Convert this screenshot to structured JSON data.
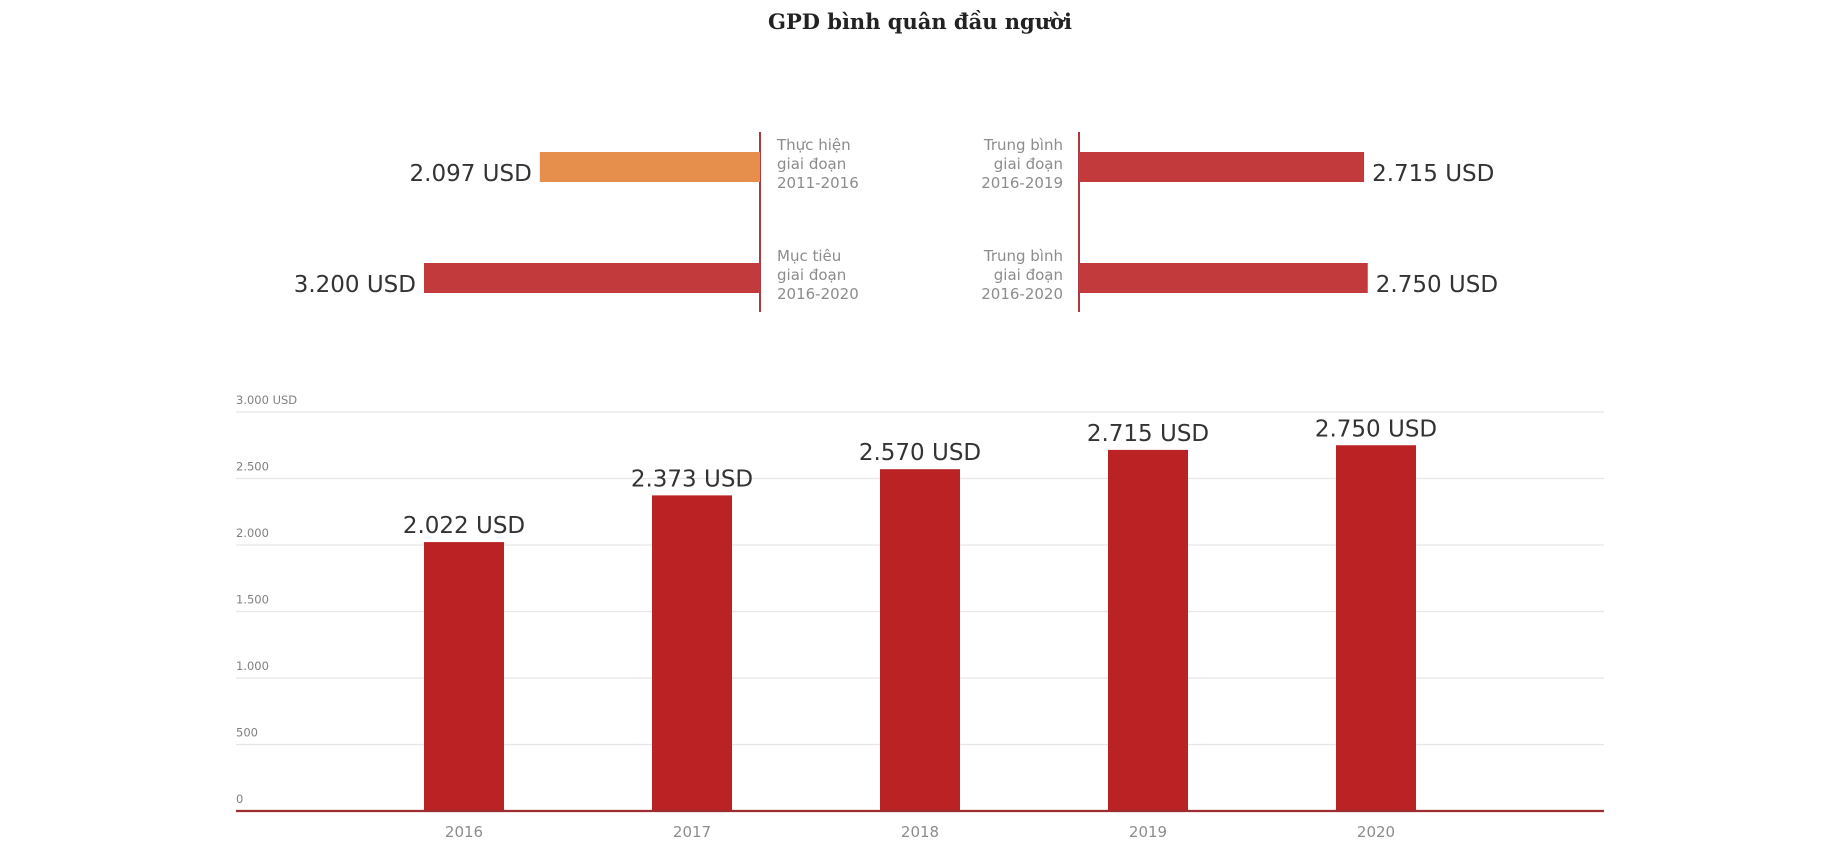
{
  "chart_data": [
    {
      "type": "bar",
      "orientation": "horizontal",
      "title": "GPD bình quân đầu người",
      "panel": "left",
      "unit": "USD",
      "items": [
        {
          "label_lines": [
            "Thực hiện",
            "giai đoạn",
            "2011-2016"
          ],
          "value": 2097,
          "value_label": "2.097 USD",
          "color": "#E68E4C"
        },
        {
          "label_lines": [
            "Mục tiêu",
            "giai đoạn",
            "2016-2020"
          ],
          "value": 3200,
          "value_label": "3.200 USD",
          "color": "#C23A3C"
        }
      ]
    },
    {
      "type": "bar",
      "orientation": "horizontal",
      "panel": "right",
      "unit": "USD",
      "items": [
        {
          "label_lines": [
            "Trung bình",
            "giai đoạn",
            "2016-2019"
          ],
          "value": 2715,
          "value_label": "2.715 USD",
          "color": "#C23A3C"
        },
        {
          "label_lines": [
            "Trung bình",
            "giai đoạn",
            "2016-2020"
          ],
          "value": 2750,
          "value_label": "2.750 USD",
          "color": "#C23A3C"
        }
      ]
    },
    {
      "type": "bar",
      "orientation": "vertical",
      "categories": [
        "2016",
        "2017",
        "2018",
        "2019",
        "2020"
      ],
      "values": [
        2022,
        2373,
        2570,
        2715,
        2750
      ],
      "value_labels": [
        "2.022 USD",
        "2.373 USD",
        "2.570 USD",
        "2.715 USD",
        "2.750 USD"
      ],
      "color": "#BA2224",
      "ylim": [
        0,
        3000
      ],
      "yticks": [
        0,
        500,
        1000,
        1500,
        2000,
        2500,
        3000
      ],
      "ytick_labels": [
        "0",
        "500",
        "1.000",
        "1.500",
        "2.000",
        "2.500",
        "3.000 USD"
      ],
      "xlabel": "",
      "ylabel": "",
      "grid": true
    }
  ],
  "colors": {
    "axis_line": "#B0373B",
    "grid": "#E6E6E6",
    "baseline": "#9E2B2F"
  }
}
